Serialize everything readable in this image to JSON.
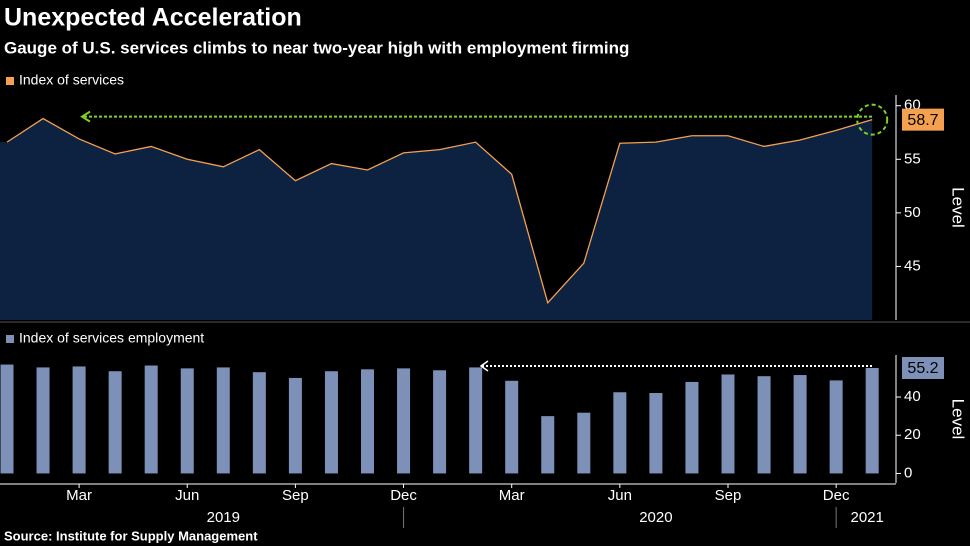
{
  "title": "Unexpected Acceleration",
  "subtitle": "Gauge of U.S. services climbs to near two-year high with employment firming",
  "source": "Source: Institute for Supply Management",
  "categories": [
    null,
    null,
    "Mar",
    null,
    null,
    "Jun",
    null,
    null,
    "Sep",
    null,
    null,
    "Dec",
    null,
    null,
    "Mar",
    null,
    null,
    "Jun",
    null,
    null,
    "Sep",
    null,
    null,
    "Dec",
    null
  ],
  "years": [
    "2019",
    "2020",
    "2021"
  ],
  "chart_data": [
    {
      "type": "area",
      "y_label": "Level",
      "ylim": [
        40,
        61
      ],
      "yticks": [
        45,
        50,
        55,
        60
      ],
      "series": [
        {
          "name": "Index of services",
          "color": "#f5a04e",
          "values": [
            56.6,
            58.8,
            56.9,
            55.5,
            56.2,
            55.0,
            54.3,
            55.9,
            53.0,
            54.6,
            54.0,
            55.6,
            55.9,
            56.6,
            53.6,
            41.6,
            45.3,
            56.5,
            56.6,
            57.2,
            57.2,
            56.2,
            56.8,
            57.7,
            58.7
          ]
        }
      ]
    },
    {
      "type": "bar",
      "y_label": "Level",
      "ylim": [
        -5,
        62
      ],
      "yticks": [
        0,
        20,
        40
      ],
      "series": [
        {
          "name": "Index of services employment",
          "color": "#7d91b8",
          "values": [
            57.0,
            55.5,
            56.0,
            53.5,
            56.5,
            55.0,
            55.5,
            53.0,
            50.0,
            53.5,
            54.5,
            55.0,
            54.0,
            55.5,
            48.5,
            30.0,
            31.8,
            42.5,
            42.1,
            47.9,
            51.8,
            50.9,
            51.5,
            48.7,
            55.2
          ]
        }
      ]
    }
  ]
}
